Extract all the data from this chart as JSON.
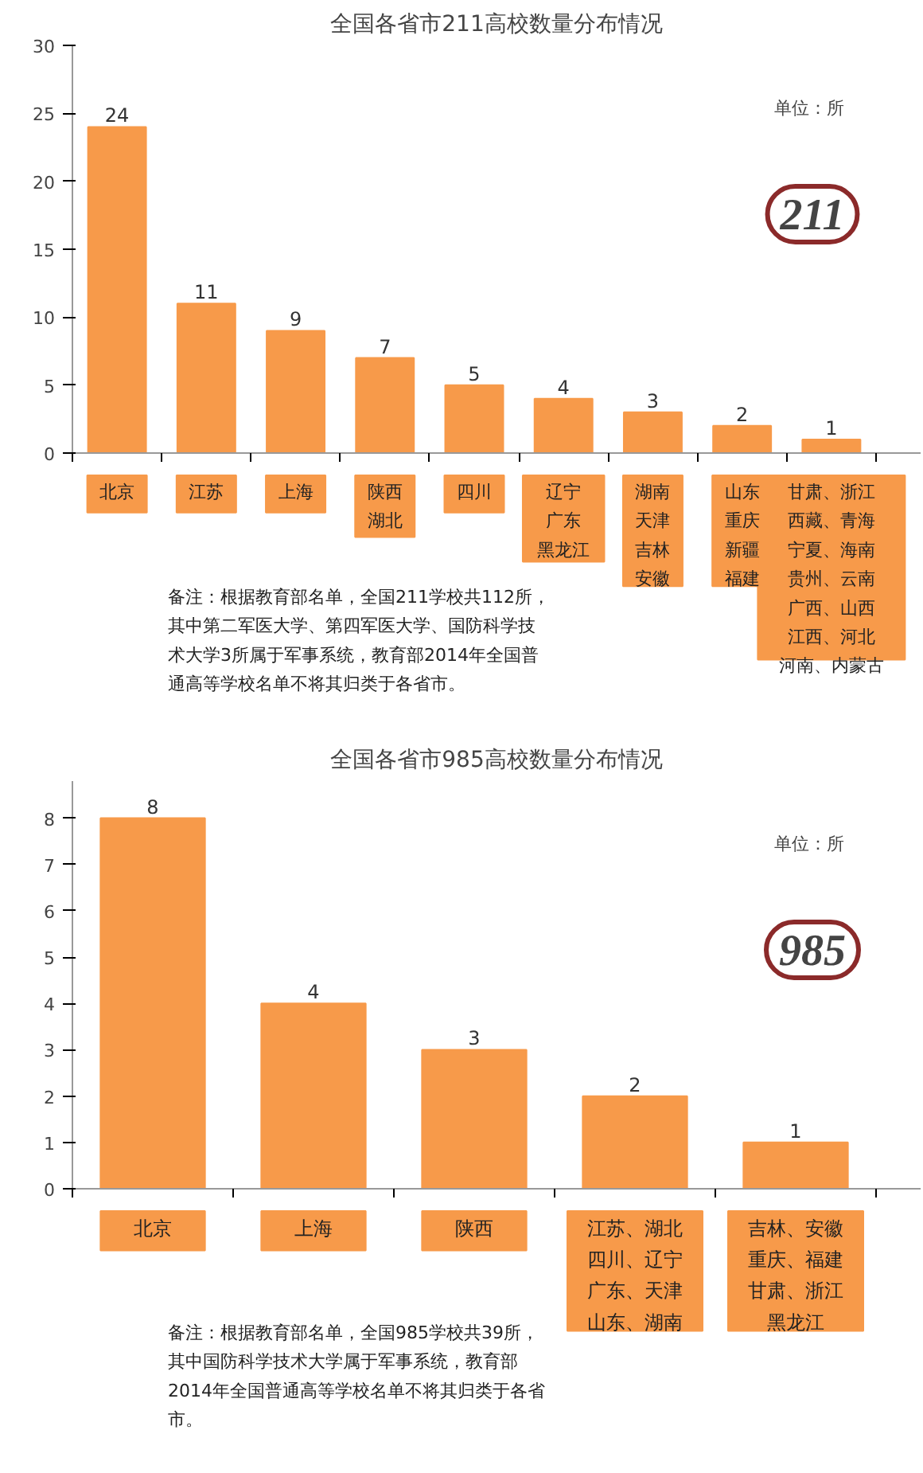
{
  "chart_data": [
    {
      "type": "bar",
      "title": "全国各省市211高校数量分布情况",
      "categories": [
        "北京",
        "江苏",
        "上海",
        "陕西湖北",
        "四川",
        "辽宁广东黑龙江",
        "湖南天津吉林安徽",
        "山东重庆新疆福建",
        "甘肃、浙江西藏、青海宁夏、海南贵州、云南广西、山西江西、河北河南、内蒙古"
      ],
      "values": [
        24,
        11,
        9,
        7,
        5,
        4,
        3,
        2,
        1
      ],
      "color": "#f79a4a",
      "ylim": [
        0,
        30
      ],
      "yticks": [
        0,
        5,
        10,
        15,
        20,
        25,
        30
      ],
      "data_labels": true,
      "grid": false,
      "annotations": [
        "单位：所",
        "211",
        "备注：根据教育部名单，全国211学校共112所，其中第二军医大学、第四军医大学、国防科学技术大学3所属于军事系统，教育部2014年全国普通高等学校名单不将其归类于各省市。"
      ]
    },
    {
      "type": "bar",
      "title": "全国各省市985高校数量分布情况",
      "categories": [
        "北京",
        "上海",
        "陕西",
        "江苏、湖北四川、辽宁广东、天津山东、湖南",
        "吉林、安徽重庆、福建甘肃、浙江黑龙江"
      ],
      "values": [
        8,
        4,
        3,
        2,
        1
      ],
      "color": "#f79a4a",
      "ylim": [
        0,
        8.8
      ],
      "yticks": [
        0,
        1,
        2,
        3,
        4,
        5,
        6,
        7,
        8
      ],
      "data_labels": true,
      "grid": false,
      "annotations": [
        "单位：所",
        "985",
        "备注：根据教育部名单，全国985学校共39所，其中国防科学技术大学属于军事系统，教育部2014年全国普通高等学校名单不将其归类于各省市。"
      ]
    }
  ]
}
